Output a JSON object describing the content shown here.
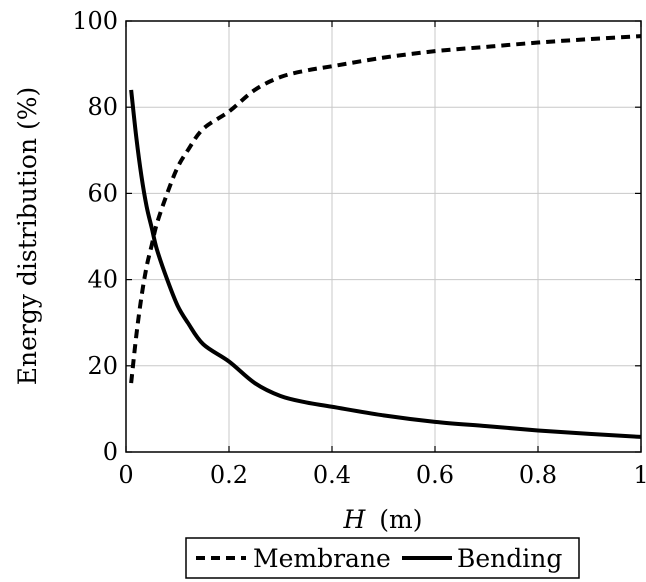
{
  "chart_data": {
    "type": "line",
    "title": "",
    "xlabel_var": "H",
    "xlabel_unit": "(m)",
    "ylabel": "Energy distribution (%)",
    "xlim": [
      0,
      1
    ],
    "ylim": [
      0,
      100
    ],
    "xticks": [
      0,
      0.2,
      0.4,
      0.6,
      0.8,
      1
    ],
    "xtick_labels": [
      "0",
      "0.2",
      "0.4",
      "0.6",
      "0.8",
      "1"
    ],
    "yticks": [
      0,
      20,
      40,
      60,
      80,
      100
    ],
    "ytick_labels": [
      "0",
      "20",
      "40",
      "60",
      "80",
      "100"
    ],
    "grid": true,
    "legend_position": "bottom-center",
    "series": [
      {
        "name": "Membrane",
        "style": "dashed",
        "color": "#000000",
        "x": [
          0.01,
          0.02,
          0.03,
          0.04,
          0.05,
          0.06,
          0.08,
          0.1,
          0.12,
          0.15,
          0.2,
          0.25,
          0.3,
          0.35,
          0.4,
          0.5,
          0.6,
          0.7,
          0.8,
          0.9,
          1.0
        ],
        "y": [
          16,
          27,
          36,
          43,
          48,
          53,
          60,
          66,
          70,
          75,
          79,
          84,
          87,
          88.5,
          89.5,
          91.5,
          93,
          94,
          95,
          95.8,
          96.5
        ]
      },
      {
        "name": "Bending",
        "style": "solid",
        "color": "#000000",
        "x": [
          0.01,
          0.02,
          0.03,
          0.04,
          0.05,
          0.06,
          0.08,
          0.1,
          0.12,
          0.15,
          0.2,
          0.25,
          0.3,
          0.35,
          0.4,
          0.5,
          0.6,
          0.7,
          0.8,
          0.9,
          1.0
        ],
        "y": [
          84,
          73,
          64,
          57,
          52,
          47,
          40,
          34,
          30,
          25,
          21,
          16,
          13,
          11.5,
          10.5,
          8.5,
          7,
          6,
          5,
          4.2,
          3.5
        ]
      }
    ]
  }
}
